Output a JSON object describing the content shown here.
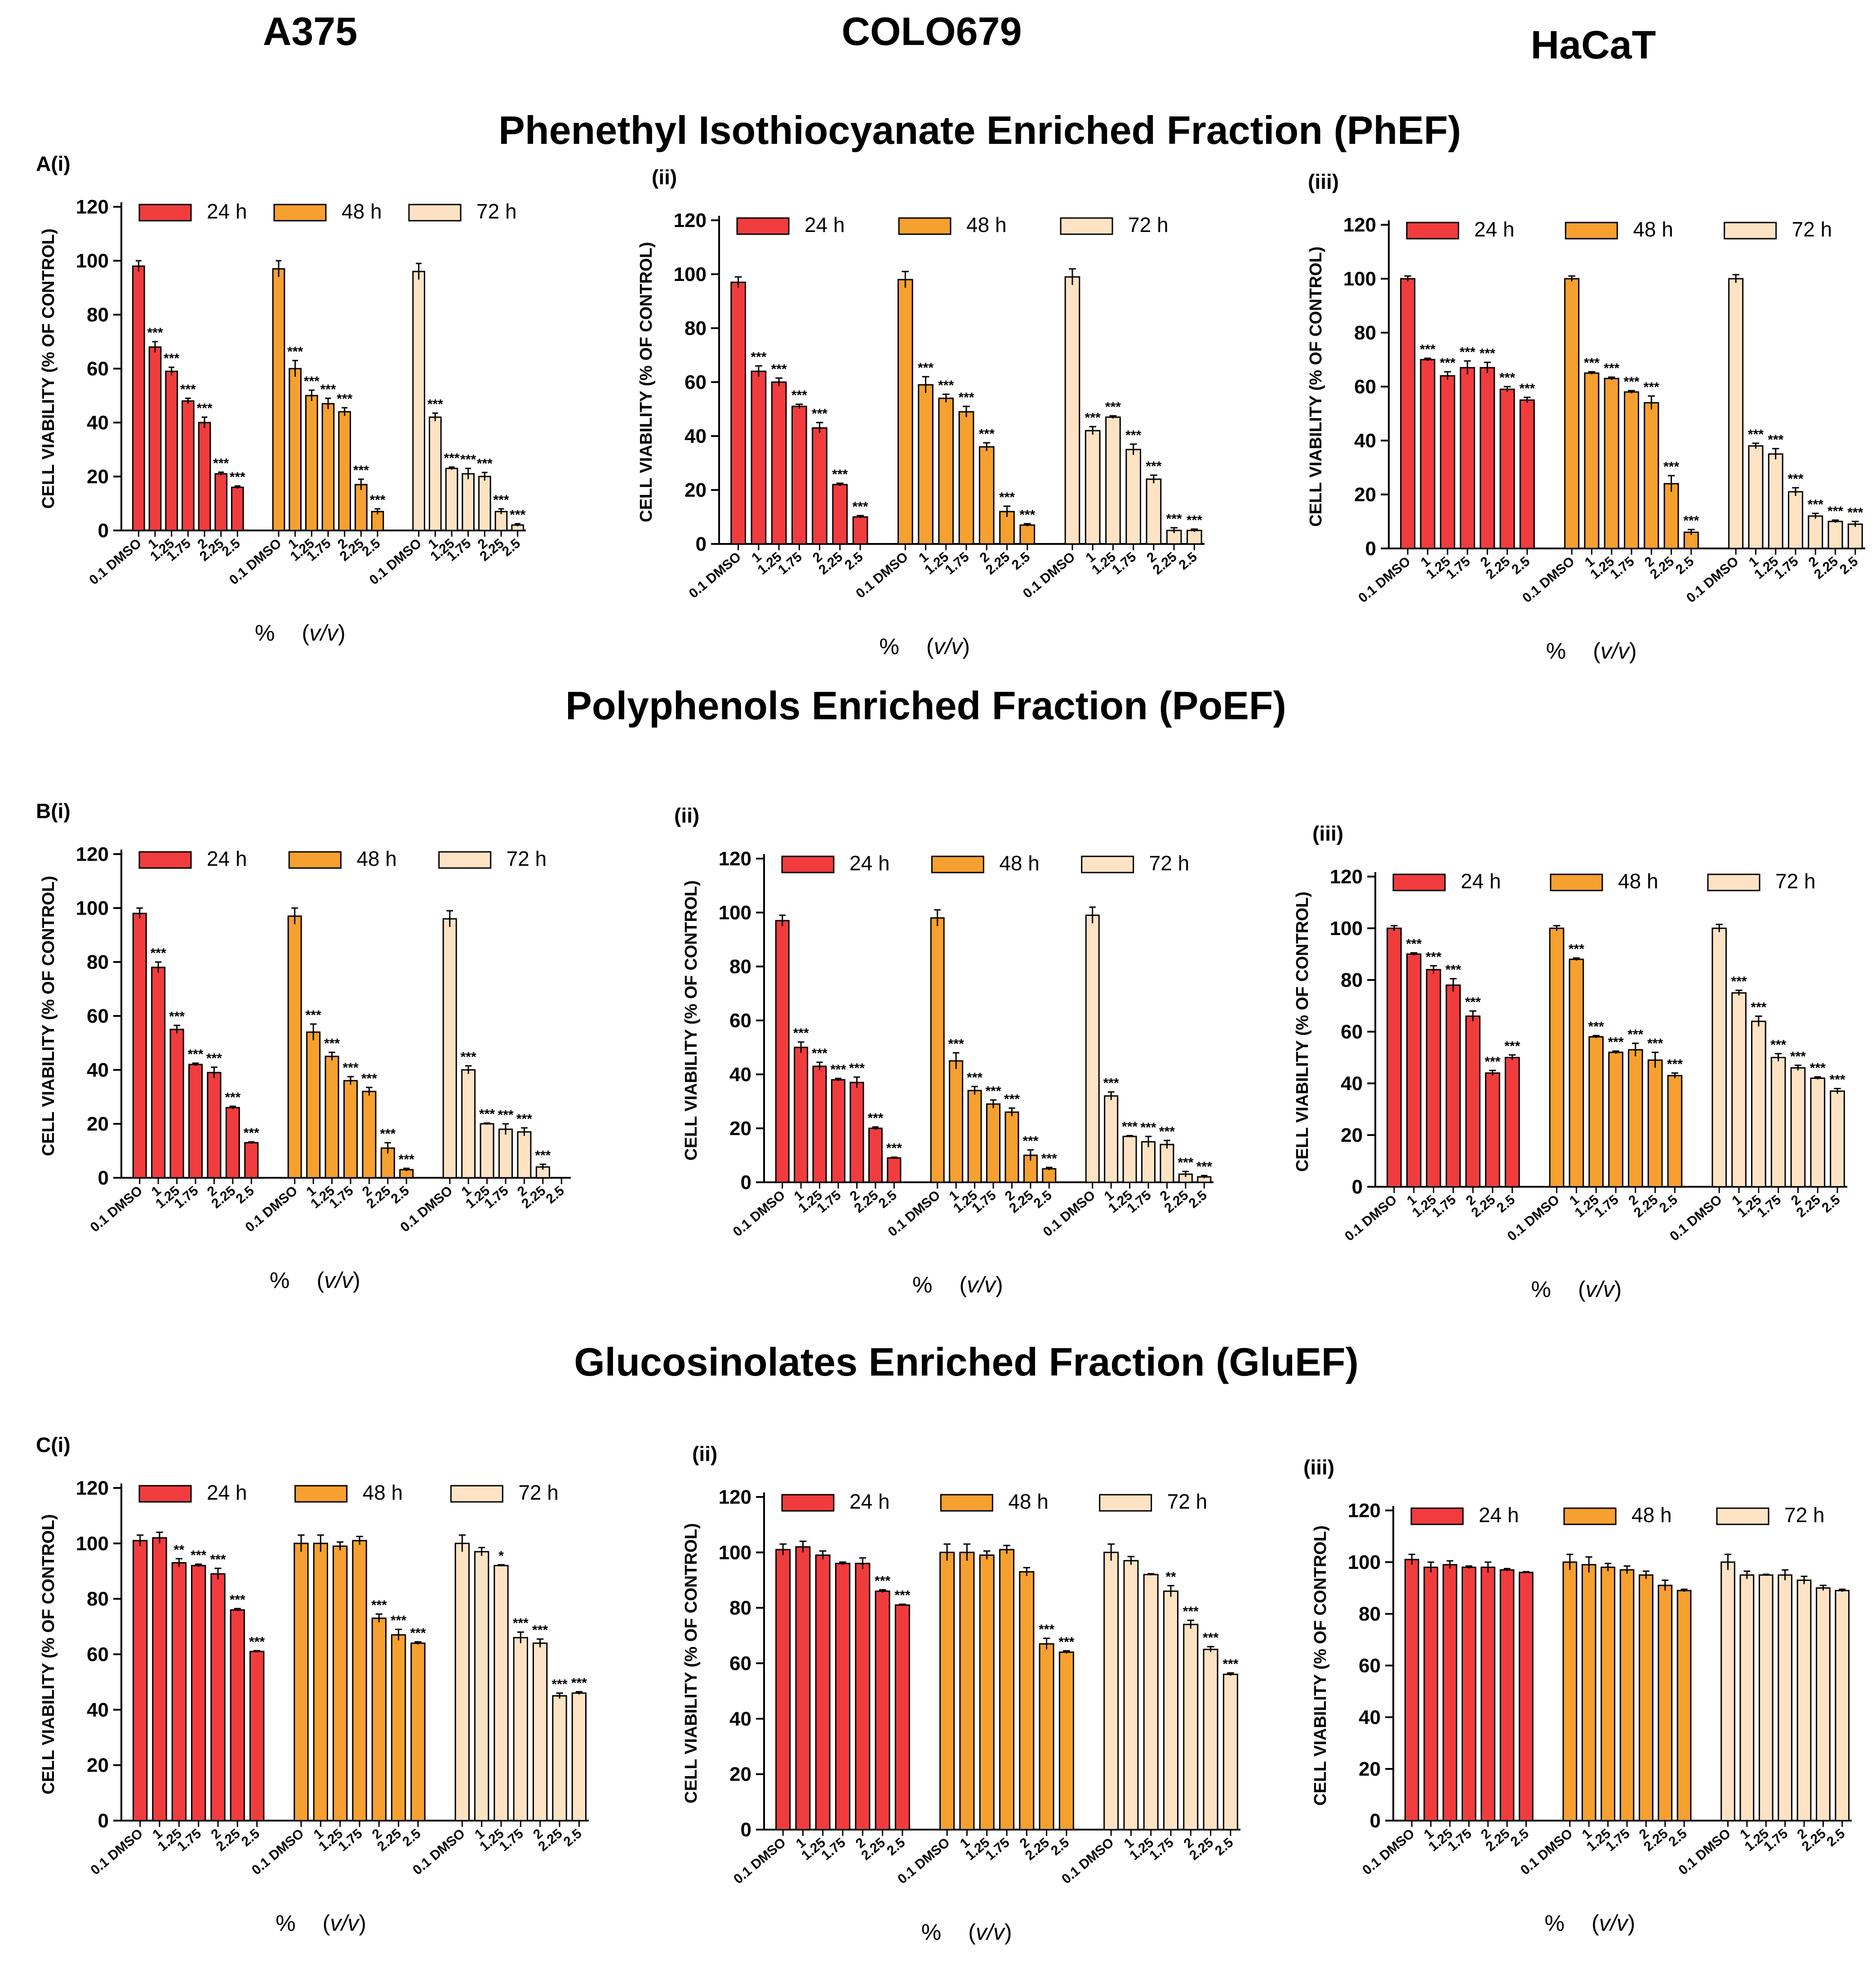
{
  "header": {
    "columns": [
      "A375",
      "COLO679",
      "HaCaT"
    ]
  },
  "sections": [
    "Phenethyl Isothiocyanate Enriched Fraction (PhEF)",
    "Polyphenols Enriched Fraction (PoEF)",
    "Glucosinolates Enriched Fraction (GluEF)"
  ],
  "legend": [
    "24 h",
    "48 h",
    "72 h"
  ],
  "series_colors": {
    "24 h": "#f13c3e",
    "48 h": "#f6a030",
    "72 h": "#fde3c4"
  },
  "ylabel": "CELL VIABILITY (% OF CONTROL)",
  "xlabel_prefix": "%",
  "xlabel_unit": "v/v",
  "categories": [
    "0.1 DMSO",
    "1",
    "1.25",
    "1.75",
    "2",
    "2.25",
    "2.5"
  ],
  "y_ticks": [
    "0",
    "20",
    "40",
    "60",
    "80",
    "100",
    "120"
  ],
  "chart_data": [
    {
      "panel": "A(i)",
      "type": "bar",
      "ylim": [
        0,
        120
      ],
      "series": [
        {
          "name": "24 h",
          "values": [
            98,
            68,
            59,
            48,
            40,
            21,
            16
          ],
          "errors": [
            2,
            2,
            1.5,
            1,
            2,
            0.6,
            0.5
          ],
          "sig": [
            "",
            "***",
            "***",
            "***",
            "***",
            "***",
            "***"
          ]
        },
        {
          "name": "48 h",
          "values": [
            97,
            60,
            50,
            47,
            44,
            17,
            7
          ],
          "errors": [
            3,
            3,
            2,
            2,
            1.5,
            2,
            1
          ],
          "sig": [
            "",
            "***",
            "***",
            "***",
            "***",
            "***",
            "***"
          ]
        },
        {
          "name": "72 h",
          "values": [
            96,
            42,
            23,
            21,
            20,
            7,
            2
          ],
          "errors": [
            3,
            1.5,
            0.5,
            2,
            1.5,
            1,
            0.5
          ],
          "sig": [
            "",
            "***",
            "***",
            "***",
            "***",
            "***",
            "***"
          ]
        }
      ]
    },
    {
      "panel": "(ii)",
      "type": "bar",
      "ylim": [
        0,
        120
      ],
      "series": [
        {
          "name": "24 h",
          "values": [
            97,
            64,
            60,
            51,
            43,
            22,
            10
          ],
          "errors": [
            2,
            2,
            1.5,
            0.8,
            2,
            0.5,
            0.5
          ],
          "sig": [
            "",
            "***",
            "***",
            "***",
            "***",
            "***",
            "***"
          ]
        },
        {
          "name": "48 h",
          "values": [
            98,
            59,
            54,
            49,
            36,
            12,
            7
          ],
          "errors": [
            3,
            3,
            1.5,
            2,
            1.5,
            2,
            0.5
          ],
          "sig": [
            "",
            "***",
            "***",
            "***",
            "***",
            "***",
            "***"
          ]
        },
        {
          "name": "72 h",
          "values": [
            99,
            42,
            47,
            35,
            24,
            5,
            5
          ],
          "errors": [
            3,
            1.5,
            0.5,
            2,
            1.5,
            1,
            0.5
          ],
          "sig": [
            "",
            "***",
            "***",
            "***",
            "***",
            "***",
            "***"
          ]
        }
      ]
    },
    {
      "panel": "(iii)",
      "type": "bar",
      "ylim": [
        0,
        120
      ],
      "series": [
        {
          "name": "24 h",
          "values": [
            100,
            70,
            64,
            67,
            67,
            59,
            55
          ],
          "errors": [
            1,
            0.5,
            1.5,
            2.5,
            2,
            1,
            1
          ],
          "sig": [
            "",
            "***",
            "***",
            "***",
            "***",
            "***",
            "***"
          ]
        },
        {
          "name": "48 h",
          "values": [
            100,
            65,
            63,
            58,
            54,
            24,
            6
          ],
          "errors": [
            1,
            0.5,
            0.5,
            0.5,
            2.5,
            3,
            1
          ],
          "sig": [
            "",
            "***",
            "***",
            "***",
            "***",
            "***",
            "***"
          ]
        },
        {
          "name": "72 h",
          "values": [
            100,
            38,
            35,
            21,
            12,
            10,
            9
          ],
          "errors": [
            1.5,
            1,
            2,
            1.5,
            1,
            0.5,
            1
          ],
          "sig": [
            "",
            "***",
            "***",
            "***",
            "***",
            "***",
            "***"
          ]
        }
      ]
    },
    {
      "panel": "B(i)",
      "type": "bar",
      "ylim": [
        0,
        120
      ],
      "series": [
        {
          "name": "24 h",
          "values": [
            98,
            78,
            55,
            42,
            39,
            26,
            13
          ],
          "errors": [
            2,
            2,
            1.5,
            0.5,
            2,
            0.5,
            0.3
          ],
          "sig": [
            "",
            "***",
            "***",
            "***",
            "***",
            "***",
            "***"
          ]
        },
        {
          "name": "48 h",
          "values": [
            97,
            54,
            45,
            36,
            32,
            11,
            3
          ],
          "errors": [
            3,
            3,
            1.5,
            1.5,
            1.5,
            2,
            0.5
          ],
          "sig": [
            "",
            "***",
            "***",
            "***",
            "***",
            "***",
            "***"
          ]
        },
        {
          "name": "72 h",
          "values": [
            96,
            40,
            20,
            18,
            17,
            4,
            0
          ],
          "errors": [
            3,
            1.5,
            0.3,
            2,
            1.5,
            1,
            0
          ],
          "sig": [
            "",
            "***",
            "***",
            "***",
            "***",
            "***",
            ""
          ]
        }
      ]
    },
    {
      "panel": "(ii)",
      "type": "bar",
      "ylim": [
        0,
        120
      ],
      "series": [
        {
          "name": "24 h",
          "values": [
            97,
            50,
            43,
            38,
            37,
            20,
            9
          ],
          "errors": [
            2,
            2,
            1.5,
            0.5,
            2,
            0.5,
            0.3
          ],
          "sig": [
            "",
            "***",
            "***",
            "***",
            "***",
            "***",
            "***"
          ]
        },
        {
          "name": "48 h",
          "values": [
            98,
            45,
            34,
            29,
            26,
            10,
            5
          ],
          "errors": [
            3,
            3,
            1.5,
            1.5,
            1.5,
            2,
            0.5
          ],
          "sig": [
            "",
            "***",
            "***",
            "***",
            "***",
            "***",
            "***"
          ]
        },
        {
          "name": "72 h",
          "values": [
            99,
            32,
            17,
            15,
            14,
            3,
            2
          ],
          "errors": [
            3,
            1.5,
            0.3,
            2,
            1.5,
            1,
            0.5
          ],
          "sig": [
            "",
            "***",
            "***",
            "***",
            "***",
            "***",
            "***"
          ]
        }
      ]
    },
    {
      "panel": "(iii)",
      "type": "bar",
      "ylim": [
        0,
        120
      ],
      "series": [
        {
          "name": "24 h",
          "values": [
            100,
            90,
            84,
            78,
            66,
            44,
            50
          ],
          "errors": [
            1,
            0.5,
            1.5,
            2.5,
            2,
            1,
            1
          ],
          "sig": [
            "",
            "***",
            "***",
            "***",
            "***",
            "***",
            "***"
          ]
        },
        {
          "name": "48 h",
          "values": [
            100,
            88,
            58,
            52,
            53,
            49,
            43
          ],
          "errors": [
            1,
            0.5,
            0.5,
            0.5,
            2.5,
            3,
            1
          ],
          "sig": [
            "",
            "***",
            "***",
            "***",
            "***",
            "***",
            "***"
          ]
        },
        {
          "name": "72 h",
          "values": [
            100,
            75,
            64,
            50,
            46,
            42,
            37
          ],
          "errors": [
            1.5,
            1,
            2,
            1.5,
            1,
            0.5,
            1
          ],
          "sig": [
            "",
            "***",
            "***",
            "***",
            "***",
            "***",
            "***"
          ]
        }
      ]
    },
    {
      "panel": "C(i)",
      "type": "bar",
      "ylim": [
        0,
        120
      ],
      "series": [
        {
          "name": "24 h",
          "values": [
            101,
            102,
            93,
            92,
            89,
            76,
            61
          ],
          "errors": [
            2,
            2,
            1.5,
            0.5,
            2,
            0.5,
            0.3
          ],
          "sig": [
            "",
            "",
            "**",
            "***",
            "***",
            "***",
            "***"
          ]
        },
        {
          "name": "48 h",
          "values": [
            100,
            100,
            99,
            101,
            73,
            67,
            64
          ],
          "errors": [
            3,
            3,
            1.5,
            1.5,
            1.5,
            2,
            0.5
          ],
          "sig": [
            "",
            "",
            "",
            "",
            "***",
            "***",
            "***"
          ]
        },
        {
          "name": "72 h",
          "values": [
            100,
            97,
            92,
            66,
            64,
            45,
            46
          ],
          "errors": [
            3,
            1.5,
            0.3,
            2,
            1.5,
            1,
            0.5
          ],
          "sig": [
            "",
            "",
            "*",
            "***",
            "***",
            "***",
            "***"
          ]
        }
      ]
    },
    {
      "panel": "(ii)",
      "type": "bar",
      "ylim": [
        0,
        120
      ],
      "series": [
        {
          "name": "24 h",
          "values": [
            101,
            102,
            99,
            96,
            96,
            86,
            81
          ],
          "errors": [
            2,
            2,
            1.5,
            0.5,
            2,
            0.5,
            0.3
          ],
          "sig": [
            "",
            "",
            "",
            "",
            "",
            "***",
            "***"
          ]
        },
        {
          "name": "48 h",
          "values": [
            100,
            100,
            99,
            101,
            93,
            67,
            64
          ],
          "errors": [
            3,
            3,
            1.5,
            1.5,
            1.5,
            2,
            0.5
          ],
          "sig": [
            "",
            "",
            "",
            "",
            "",
            "***",
            "***"
          ]
        },
        {
          "name": "72 h",
          "values": [
            100,
            97,
            92,
            86,
            74,
            65,
            56
          ],
          "errors": [
            3,
            1.5,
            0.3,
            2,
            1.5,
            1,
            0.5
          ],
          "sig": [
            "",
            "",
            "",
            "**",
            "***",
            "***",
            "***"
          ]
        }
      ]
    },
    {
      "panel": "(iii)",
      "type": "bar",
      "ylim": [
        0,
        120
      ],
      "series": [
        {
          "name": "24 h",
          "values": [
            101,
            98,
            99,
            98,
            98,
            97,
            96
          ],
          "errors": [
            2,
            2,
            1.5,
            0.5,
            2,
            0.5,
            0.3
          ],
          "sig": [
            "",
            "",
            "",
            "",
            "",
            "",
            ""
          ]
        },
        {
          "name": "48 h",
          "values": [
            100,
            99,
            98,
            97,
            95,
            91,
            89
          ],
          "errors": [
            3,
            3,
            1.5,
            1.5,
            1.5,
            2,
            0.5
          ],
          "sig": [
            "",
            "",
            "",
            "",
            "",
            "",
            ""
          ]
        },
        {
          "name": "72 h",
          "values": [
            100,
            95,
            95,
            95,
            93,
            90,
            89
          ],
          "errors": [
            3,
            1.5,
            0.3,
            2,
            1.5,
            1,
            0.5
          ],
          "sig": [
            "",
            "",
            "",
            "",
            "",
            "",
            ""
          ]
        }
      ]
    }
  ]
}
